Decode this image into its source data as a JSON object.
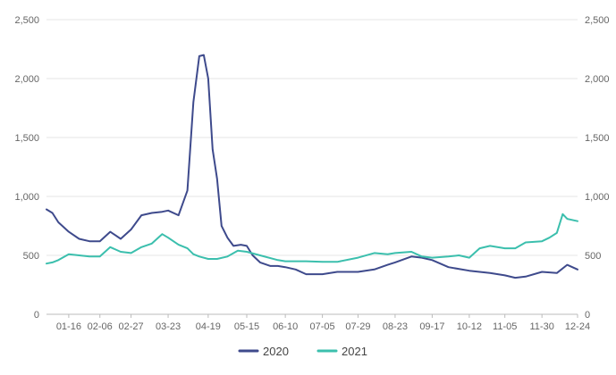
{
  "chart_data": {
    "type": "line",
    "x_ticks": [
      "01-16",
      "02-06",
      "02-27",
      "03-23",
      "04-19",
      "05-15",
      "06-10",
      "07-05",
      "07-29",
      "08-23",
      "09-17",
      "10-12",
      "11-05",
      "11-30",
      "12-24"
    ],
    "y_ticks": [
      "0",
      "500",
      "1,000",
      "1,500",
      "2,000",
      "2,500"
    ],
    "y2_ticks": [
      "0",
      "500",
      "1,000",
      "1,500",
      "2,000",
      "2,500"
    ],
    "ylim": [
      0,
      2500
    ],
    "grid": true,
    "legend_position": "bottom-center",
    "series": [
      {
        "name": "2020",
        "color": "#3e4a8c",
        "x": [
          "01-01",
          "01-05",
          "01-09",
          "01-16",
          "01-23",
          "01-30",
          "02-06",
          "02-13",
          "02-20",
          "02-27",
          "03-05",
          "03-12",
          "03-19",
          "03-23",
          "03-30",
          "04-05",
          "04-09",
          "04-13",
          "04-16",
          "04-19",
          "04-22",
          "04-25",
          "04-28",
          "05-02",
          "05-06",
          "05-11",
          "05-15",
          "05-19",
          "05-24",
          "05-31",
          "06-05",
          "06-10",
          "06-17",
          "06-24",
          "07-05",
          "07-15",
          "07-29",
          "08-09",
          "08-18",
          "08-23",
          "09-03",
          "09-10",
          "09-17",
          "09-28",
          "10-12",
          "10-19",
          "10-26",
          "11-05",
          "11-12",
          "11-19",
          "11-30",
          "12-10",
          "12-17",
          "12-24"
        ],
        "y": [
          890,
          860,
          780,
          700,
          640,
          620,
          620,
          700,
          640,
          720,
          840,
          860,
          870,
          880,
          840,
          1050,
          1800,
          2190,
          2200,
          2000,
          1400,
          1150,
          750,
          650,
          580,
          590,
          580,
          500,
          440,
          410,
          410,
          400,
          380,
          340,
          340,
          360,
          360,
          380,
          420,
          440,
          490,
          480,
          460,
          400,
          370,
          360,
          350,
          330,
          310,
          320,
          360,
          350,
          420,
          380
        ]
      },
      {
        "name": "2021",
        "color": "#3bbfad",
        "x": [
          "01-01",
          "01-05",
          "01-09",
          "01-16",
          "01-23",
          "01-30",
          "02-06",
          "02-13",
          "02-20",
          "02-27",
          "03-05",
          "03-12",
          "03-19",
          "03-23",
          "03-30",
          "04-05",
          "04-09",
          "04-13",
          "04-19",
          "04-25",
          "05-02",
          "05-09",
          "05-15",
          "05-24",
          "06-05",
          "06-10",
          "06-17",
          "06-24",
          "07-05",
          "07-15",
          "07-29",
          "08-09",
          "08-18",
          "08-23",
          "09-03",
          "09-10",
          "09-17",
          "09-28",
          "10-05",
          "10-12",
          "10-19",
          "10-26",
          "11-05",
          "11-12",
          "11-19",
          "11-30",
          "12-05",
          "12-10",
          "12-14",
          "12-17",
          "12-24"
        ],
        "y": [
          430,
          440,
          460,
          510,
          500,
          490,
          490,
          570,
          530,
          520,
          570,
          600,
          680,
          650,
          590,
          560,
          510,
          490,
          470,
          470,
          490,
          540,
          530,
          500,
          460,
          450,
          450,
          450,
          445,
          445,
          480,
          520,
          510,
          520,
          530,
          490,
          480,
          490,
          500,
          480,
          560,
          580,
          560,
          560,
          610,
          620,
          650,
          690,
          850,
          810,
          790
        ]
      }
    ]
  }
}
